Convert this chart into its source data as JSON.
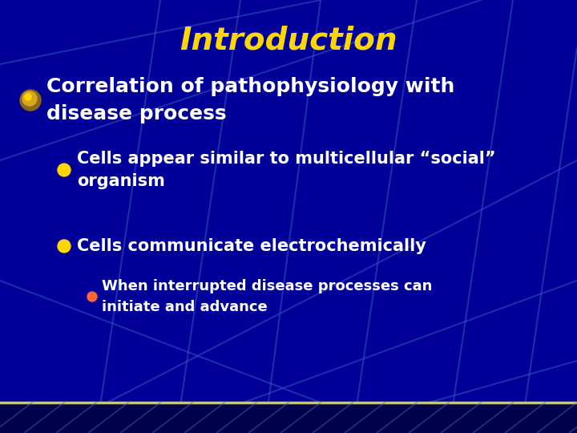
{
  "title": "Introduction",
  "title_color": "#FFD700",
  "title_fontsize": 28,
  "title_style": "italic",
  "title_weight": "bold",
  "bg_color": "#000099",
  "bullet1_text": "Correlation of pathophysiology with\ndisease process",
  "bullet1_color": "#FFFFFF",
  "bullet1_fontsize": 18,
  "sub_bullet1_text": "Cells appear similar to multicellular “social”\norganism",
  "sub_bullet1_color": "#FFFFFF",
  "sub_bullet1_fontsize": 15,
  "sub_bullet1_bullet_color": "#FFD700",
  "sub_bullet2_text": "Cells communicate electrochemically",
  "sub_bullet2_color": "#FFFFFF",
  "sub_bullet2_fontsize": 15,
  "sub_bullet2_bullet_color": "#FFD700",
  "sub_sub_bullet1_text": "When interrupted disease processes can\ninitiate and advance",
  "sub_sub_bullet1_color": "#FFFFFF",
  "sub_sub_bullet1_fontsize": 13,
  "sub_sub_bullet1_bullet_color": "#FF6633",
  "bottom_line_color": "#CCCC44",
  "figsize": [
    7.2,
    5.4
  ],
  "dpi": 100
}
